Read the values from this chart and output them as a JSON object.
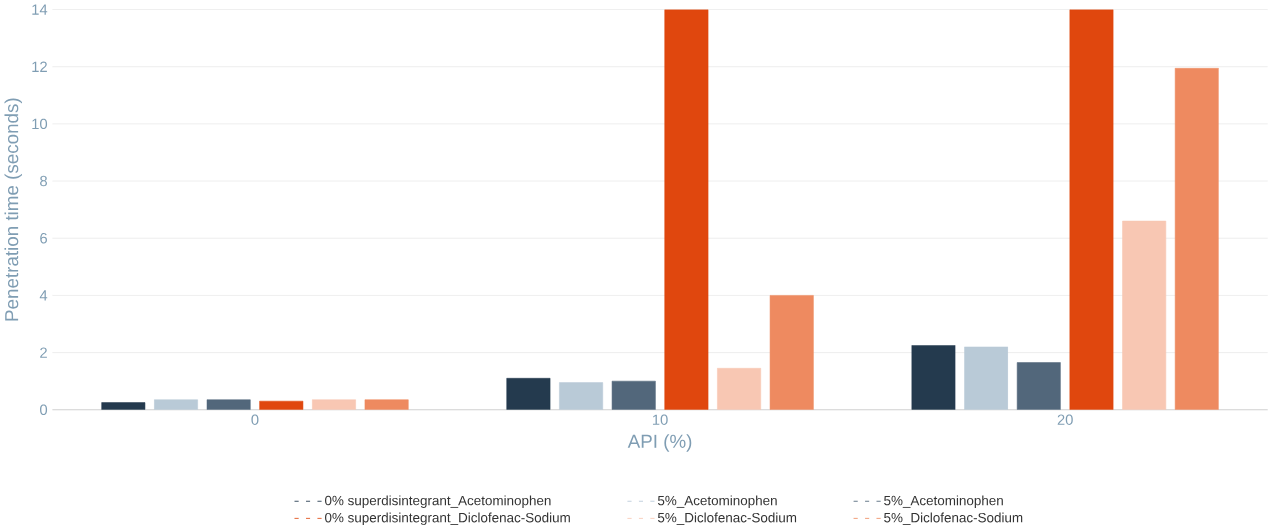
{
  "chart_data": {
    "type": "bar",
    "xlabel": "API (%)",
    "ylabel": "Penetration time (seconds)",
    "categories": [
      "0",
      "10",
      "20"
    ],
    "series": [
      {
        "name": "0% superdisintegrant_Acetominophen",
        "color": "#243a4e",
        "values": [
          0.25,
          1.1,
          2.25
        ]
      },
      {
        "name": "5%_Acetominophen",
        "color": "#b9cad7",
        "values": [
          0.35,
          0.95,
          2.2
        ]
      },
      {
        "name": "5%_Acetominophen",
        "color": "#52677b",
        "values": [
          0.35,
          1.0,
          1.65
        ]
      },
      {
        "name": "0% superdisintegrant_Diclofenac-Sodium",
        "color": "#e0470e",
        "values": [
          0.3,
          14,
          14
        ]
      },
      {
        "name": "5%_Diclofenac-Sodium",
        "color": "#f8c7b3",
        "values": [
          0.35,
          1.45,
          6.6
        ]
      },
      {
        "name": "5%_Diclofenac-Sodium",
        "color": "#ee8a60",
        "values": [
          0.35,
          4.0,
          11.95
        ]
      }
    ],
    "ylim": [
      0,
      14
    ],
    "yticks": [
      0,
      2,
      4,
      6,
      8,
      10,
      12,
      14
    ],
    "grid": "y",
    "legend": "bottom"
  }
}
